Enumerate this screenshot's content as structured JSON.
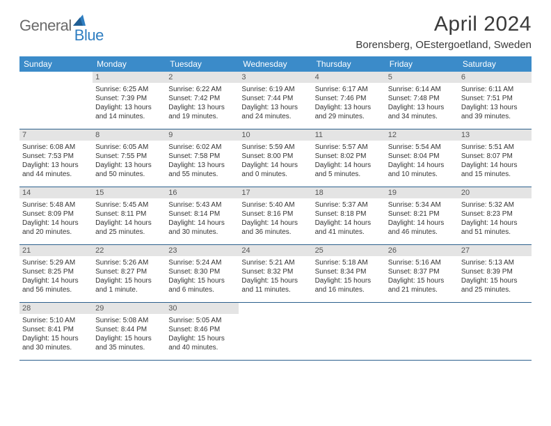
{
  "logo": {
    "word1": "General",
    "word2": "Blue"
  },
  "title": "April 2024",
  "location": "Borensberg, OEstergoetland, Sweden",
  "colors": {
    "header_bg": "#3b8bc9",
    "header_text": "#ffffff",
    "daynum_bg": "#e4e4e4",
    "rule": "#2b5f8c",
    "logo_gray": "#6a6a6a",
    "logo_blue": "#2f7ec1"
  },
  "weekdays": [
    "Sunday",
    "Monday",
    "Tuesday",
    "Wednesday",
    "Thursday",
    "Friday",
    "Saturday"
  ],
  "weeks": [
    [
      {
        "n": "",
        "empty": true
      },
      {
        "n": "1",
        "sr": "Sunrise: 6:25 AM",
        "ss": "Sunset: 7:39 PM",
        "d1": "Daylight: 13 hours",
        "d2": "and 14 minutes."
      },
      {
        "n": "2",
        "sr": "Sunrise: 6:22 AM",
        "ss": "Sunset: 7:42 PM",
        "d1": "Daylight: 13 hours",
        "d2": "and 19 minutes."
      },
      {
        "n": "3",
        "sr": "Sunrise: 6:19 AM",
        "ss": "Sunset: 7:44 PM",
        "d1": "Daylight: 13 hours",
        "d2": "and 24 minutes."
      },
      {
        "n": "4",
        "sr": "Sunrise: 6:17 AM",
        "ss": "Sunset: 7:46 PM",
        "d1": "Daylight: 13 hours",
        "d2": "and 29 minutes."
      },
      {
        "n": "5",
        "sr": "Sunrise: 6:14 AM",
        "ss": "Sunset: 7:48 PM",
        "d1": "Daylight: 13 hours",
        "d2": "and 34 minutes."
      },
      {
        "n": "6",
        "sr": "Sunrise: 6:11 AM",
        "ss": "Sunset: 7:51 PM",
        "d1": "Daylight: 13 hours",
        "d2": "and 39 minutes."
      }
    ],
    [
      {
        "n": "7",
        "sr": "Sunrise: 6:08 AM",
        "ss": "Sunset: 7:53 PM",
        "d1": "Daylight: 13 hours",
        "d2": "and 44 minutes."
      },
      {
        "n": "8",
        "sr": "Sunrise: 6:05 AM",
        "ss": "Sunset: 7:55 PM",
        "d1": "Daylight: 13 hours",
        "d2": "and 50 minutes."
      },
      {
        "n": "9",
        "sr": "Sunrise: 6:02 AM",
        "ss": "Sunset: 7:58 PM",
        "d1": "Daylight: 13 hours",
        "d2": "and 55 minutes."
      },
      {
        "n": "10",
        "sr": "Sunrise: 5:59 AM",
        "ss": "Sunset: 8:00 PM",
        "d1": "Daylight: 14 hours",
        "d2": "and 0 minutes."
      },
      {
        "n": "11",
        "sr": "Sunrise: 5:57 AM",
        "ss": "Sunset: 8:02 PM",
        "d1": "Daylight: 14 hours",
        "d2": "and 5 minutes."
      },
      {
        "n": "12",
        "sr": "Sunrise: 5:54 AM",
        "ss": "Sunset: 8:04 PM",
        "d1": "Daylight: 14 hours",
        "d2": "and 10 minutes."
      },
      {
        "n": "13",
        "sr": "Sunrise: 5:51 AM",
        "ss": "Sunset: 8:07 PM",
        "d1": "Daylight: 14 hours",
        "d2": "and 15 minutes."
      }
    ],
    [
      {
        "n": "14",
        "sr": "Sunrise: 5:48 AM",
        "ss": "Sunset: 8:09 PM",
        "d1": "Daylight: 14 hours",
        "d2": "and 20 minutes."
      },
      {
        "n": "15",
        "sr": "Sunrise: 5:45 AM",
        "ss": "Sunset: 8:11 PM",
        "d1": "Daylight: 14 hours",
        "d2": "and 25 minutes."
      },
      {
        "n": "16",
        "sr": "Sunrise: 5:43 AM",
        "ss": "Sunset: 8:14 PM",
        "d1": "Daylight: 14 hours",
        "d2": "and 30 minutes."
      },
      {
        "n": "17",
        "sr": "Sunrise: 5:40 AM",
        "ss": "Sunset: 8:16 PM",
        "d1": "Daylight: 14 hours",
        "d2": "and 36 minutes."
      },
      {
        "n": "18",
        "sr": "Sunrise: 5:37 AM",
        "ss": "Sunset: 8:18 PM",
        "d1": "Daylight: 14 hours",
        "d2": "and 41 minutes."
      },
      {
        "n": "19",
        "sr": "Sunrise: 5:34 AM",
        "ss": "Sunset: 8:21 PM",
        "d1": "Daylight: 14 hours",
        "d2": "and 46 minutes."
      },
      {
        "n": "20",
        "sr": "Sunrise: 5:32 AM",
        "ss": "Sunset: 8:23 PM",
        "d1": "Daylight: 14 hours",
        "d2": "and 51 minutes."
      }
    ],
    [
      {
        "n": "21",
        "sr": "Sunrise: 5:29 AM",
        "ss": "Sunset: 8:25 PM",
        "d1": "Daylight: 14 hours",
        "d2": "and 56 minutes."
      },
      {
        "n": "22",
        "sr": "Sunrise: 5:26 AM",
        "ss": "Sunset: 8:27 PM",
        "d1": "Daylight: 15 hours",
        "d2": "and 1 minute."
      },
      {
        "n": "23",
        "sr": "Sunrise: 5:24 AM",
        "ss": "Sunset: 8:30 PM",
        "d1": "Daylight: 15 hours",
        "d2": "and 6 minutes."
      },
      {
        "n": "24",
        "sr": "Sunrise: 5:21 AM",
        "ss": "Sunset: 8:32 PM",
        "d1": "Daylight: 15 hours",
        "d2": "and 11 minutes."
      },
      {
        "n": "25",
        "sr": "Sunrise: 5:18 AM",
        "ss": "Sunset: 8:34 PM",
        "d1": "Daylight: 15 hours",
        "d2": "and 16 minutes."
      },
      {
        "n": "26",
        "sr": "Sunrise: 5:16 AM",
        "ss": "Sunset: 8:37 PM",
        "d1": "Daylight: 15 hours",
        "d2": "and 21 minutes."
      },
      {
        "n": "27",
        "sr": "Sunrise: 5:13 AM",
        "ss": "Sunset: 8:39 PM",
        "d1": "Daylight: 15 hours",
        "d2": "and 25 minutes."
      }
    ],
    [
      {
        "n": "28",
        "sr": "Sunrise: 5:10 AM",
        "ss": "Sunset: 8:41 PM",
        "d1": "Daylight: 15 hours",
        "d2": "and 30 minutes."
      },
      {
        "n": "29",
        "sr": "Sunrise: 5:08 AM",
        "ss": "Sunset: 8:44 PM",
        "d1": "Daylight: 15 hours",
        "d2": "and 35 minutes."
      },
      {
        "n": "30",
        "sr": "Sunrise: 5:05 AM",
        "ss": "Sunset: 8:46 PM",
        "d1": "Daylight: 15 hours",
        "d2": "and 40 minutes."
      },
      {
        "n": "",
        "empty": true
      },
      {
        "n": "",
        "empty": true
      },
      {
        "n": "",
        "empty": true
      },
      {
        "n": "",
        "empty": true
      }
    ]
  ]
}
